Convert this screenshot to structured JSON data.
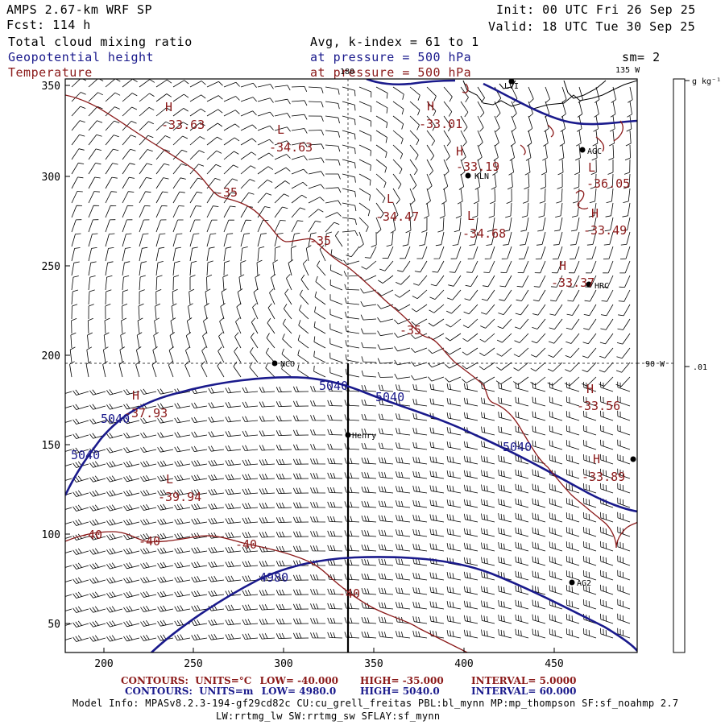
{
  "header": {
    "left_line1": "AMPS 2.67-km WRF SP",
    "left_line2": "Fcst:  114 h",
    "left_line3": "Total cloud mixing ratio",
    "left_line4": "Geopotential height",
    "left_line5": "Temperature",
    "right_line1": "Init: 00 UTC Fri 26 Sep 25",
    "right_line2": "Valid: 18 UTC Tue 30 Sep 25",
    "mid_line1": "Avg, k-index =  61 to   1",
    "mid_line2": "at pressure =  500 hPa",
    "mid_line3": "at pressure =  500 hPa",
    "smoothing": "sm= 2"
  },
  "axes": {
    "x_ticks": [
      "200",
      "250",
      "300",
      "350",
      "400",
      "450"
    ],
    "y_ticks": [
      "350",
      "300",
      "250",
      "200",
      "150",
      "100",
      "50"
    ]
  },
  "grid_labels": {
    "lon_180": "180",
    "lon_135w": "135 W",
    "lon_90w": "90 W"
  },
  "colorbar": {
    "unit": "g kg⁻¹",
    "tick_value": ".01"
  },
  "stations": [
    {
      "name": "LVI"
    },
    {
      "name": "AGC"
    },
    {
      "name": "KLN"
    },
    {
      "name": "HRC"
    },
    {
      "name": "NCO"
    },
    {
      "name": "Henry"
    },
    {
      "name": "AG2"
    },
    {
      "name": ""
    }
  ],
  "extrema": [
    {
      "letter": "H",
      "value": "-33.63"
    },
    {
      "letter": "L",
      "value": "-34.63"
    },
    {
      "letter": "H",
      "value": "-33.01"
    },
    {
      "letter": "H",
      "value": "-33.19"
    },
    {
      "letter": "L",
      "value": "-36.05"
    },
    {
      "letter": "L",
      "value": "-34.47"
    },
    {
      "letter": "L",
      "value": "-34.68"
    },
    {
      "letter": "H",
      "value": "-33.49"
    },
    {
      "letter": "H",
      "value": "-33.37"
    },
    {
      "letter": "H",
      "value": "-33.56"
    },
    {
      "letter": "H",
      "value": "-33.89"
    },
    {
      "letter": "H",
      "value": "-37.93"
    },
    {
      "letter": "L",
      "value": "-39.94"
    }
  ],
  "temp_contour_labels": [
    "-35",
    "-35",
    "-35",
    "-40",
    "-40",
    "-40",
    "-40"
  ],
  "height_contour_labels": [
    "5040",
    "5040",
    "5040",
    "5040",
    "5040",
    "4980"
  ],
  "footer": {
    "temp_prefix": "CONTOURS:",
    "temp_units": "UNITS=°C",
    "temp_low": "LOW=  -40.000",
    "temp_high": "HIGH=  -35.000",
    "temp_interval": "INTERVAL=    5.0000",
    "hgt_prefix": "CONTOURS:",
    "hgt_units": "UNITS=m",
    "hgt_low": "LOW=  4980.0",
    "hgt_high": "HIGH=  5040.0",
    "hgt_interval": "INTERVAL=   60.000",
    "model_line1": "Model Info: MPASv8.2.3-194-gf29cd82c CU:cu_grell_freitas PBL:bl_mynn MP:mp_thompson SF:sf_noahmp 2.7",
    "model_line2": "LW:rrtmg_lw SW:rrtmg_sw SFLAY:sf_mynn"
  },
  "colors": {
    "height": "#1a1a8c",
    "temperature": "#8b1a1a",
    "barbs": "#000000"
  }
}
